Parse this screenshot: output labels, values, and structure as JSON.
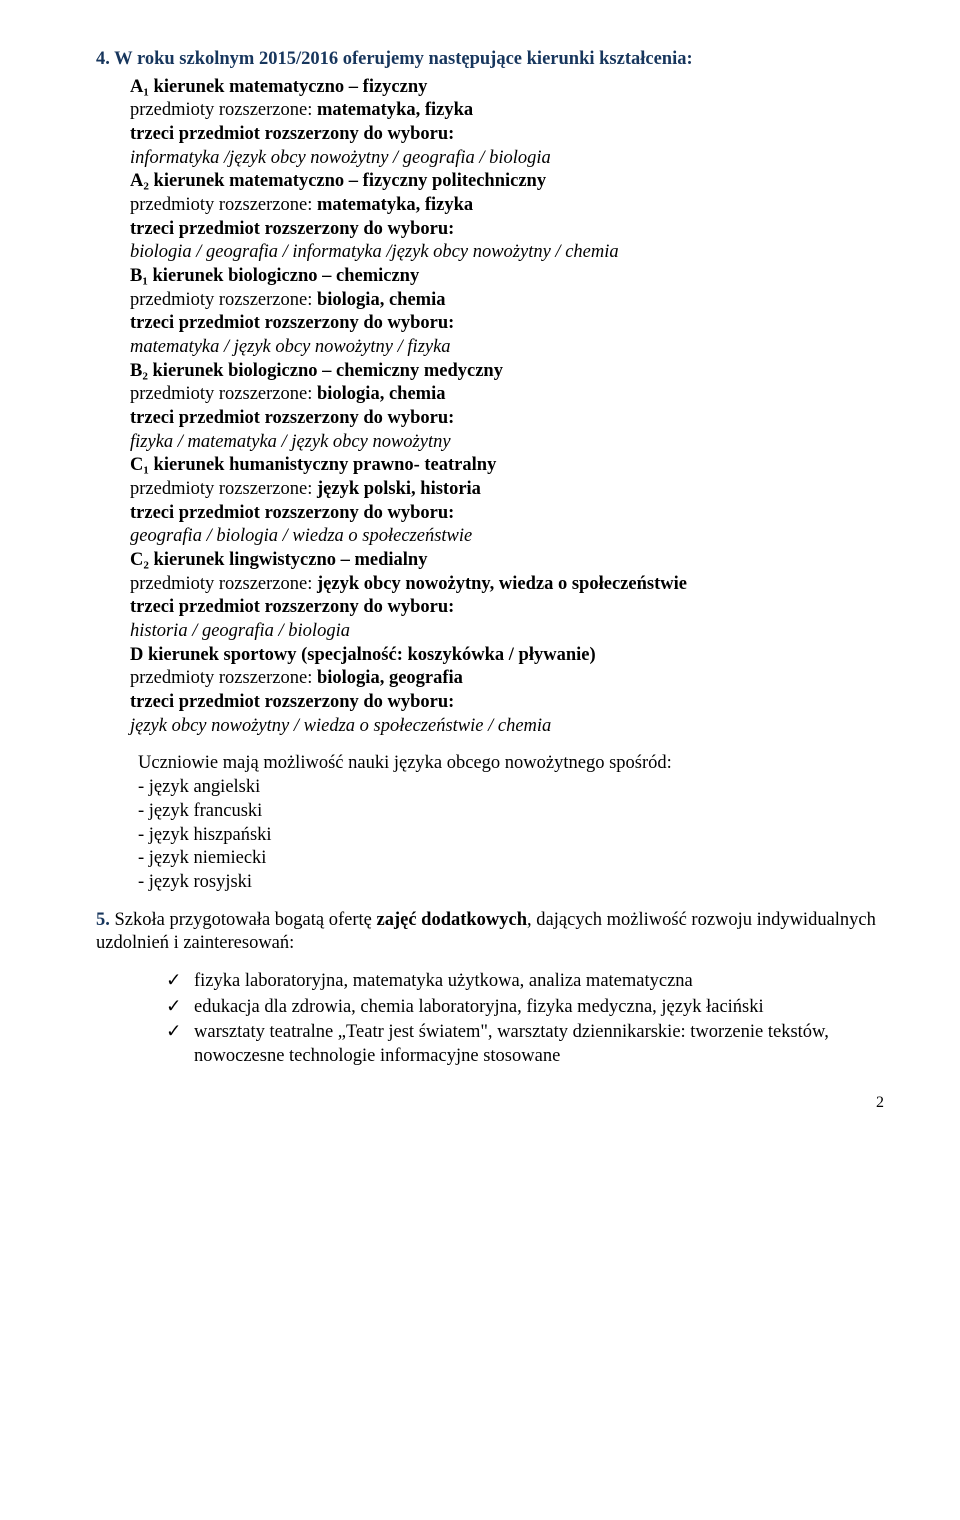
{
  "colors": {
    "heading": "#17365d",
    "text": "#000000",
    "background": "#ffffff"
  },
  "section4": {
    "title": "4. W roku szkolnym 2015/2016  oferujemy następujące  kierunki kształcenia:",
    "items": [
      {
        "code": "A₁",
        "name": "kierunek matematyczno – fizyczny",
        "line1_label": "przedmioty rozszerzone: ",
        "line1_value": "matematyka, fizyka",
        "line2": "trzeci przedmiot rozszerzony do wyboru:",
        "line3_italic": "informatyka /język obcy nowożytny / geografia / biologia"
      },
      {
        "code": "A₂",
        "name": "kierunek matematyczno – fizyczny  politechniczny",
        "line1_label": "przedmioty rozszerzone: ",
        "line1_value": "matematyka, fizyka",
        "line2": "trzeci przedmiot rozszerzony do wyboru:",
        "line3_italic": "biologia / geografia /  informatyka /język obcy nowożytny  / chemia"
      },
      {
        "code": "B₁",
        "name": "kierunek biologiczno – chemiczny",
        "line1_label": "przedmioty rozszerzone: ",
        "line1_value": "biologia, chemia",
        "line2": "trzeci przedmiot rozszerzony do wyboru:",
        "line3_italic": "matematyka / język obcy nowożytny / fizyka"
      },
      {
        "code": "B₂",
        "name": "kierunek biologiczno – chemiczny  medyczny",
        "line1_label": "przedmioty rozszerzone: ",
        "line1_value": "biologia, chemia",
        "line2": "trzeci przedmiot rozszerzony do wyboru:",
        "line3_italic": "fizyka / matematyka /  język obcy nowożytny"
      },
      {
        "code": "C₁",
        "name": "kierunek humanistyczny prawno- teatralny",
        "line1_label": "przedmioty  rozszerzone: ",
        "line1_value": "język polski, historia",
        "line2": "trzeci przedmiot rozszerzony do wyboru:",
        "line3_italic": "geografia / biologia / wiedza o społeczeństwie"
      },
      {
        "code": "C₂",
        "name": "kierunek lingwistyczno – medialny",
        "line1_label": "przedmioty rozszerzone: ",
        "line1_value": "język obcy nowożytny, wiedza o społeczeństwie",
        "line2": "trzeci przedmiot rozszerzony do wyboru:",
        "line3_italic": "historia / geografia /  biologia"
      },
      {
        "code": "D",
        "name": "kierunek sportowy (specjalność: koszykówka / pływanie)",
        "line1_label": "przedmioty rozszerzone: ",
        "line1_value": "biologia,  geografia",
        "line2": "trzeci przedmiot rozszerzony do wyboru:",
        "line3_italic": "język obcy nowożytny / wiedza o społeczeństwie / chemia"
      }
    ],
    "lang_intro": "Uczniowie  mają możliwość nauki języka obcego nowożytnego  spośród:",
    "languages": [
      "- język angielski",
      "- język francuski",
      "- język hiszpański",
      "- język niemiecki",
      "- język rosyjski"
    ]
  },
  "section5": {
    "intro_lead": "5.",
    "intro_prefix": " Szkoła przygotowała bogatą ofertę ",
    "intro_bold": "zajęć dodatkowych",
    "intro_rest": ", dających możliwość rozwoju indywidualnych uzdolnień i zainteresowań:",
    "checks": [
      "fizyka laboratoryjna, matematyka użytkowa, analiza matematyczna",
      "edukacja dla zdrowia, chemia laboratoryjna, fizyka medyczna, język łaciński",
      "warsztaty teatralne „Teatr jest światem\", warsztaty dziennikarskie: tworzenie tekstów,  nowoczesne technologie informacyjne stosowane"
    ]
  },
  "page_number": "2"
}
